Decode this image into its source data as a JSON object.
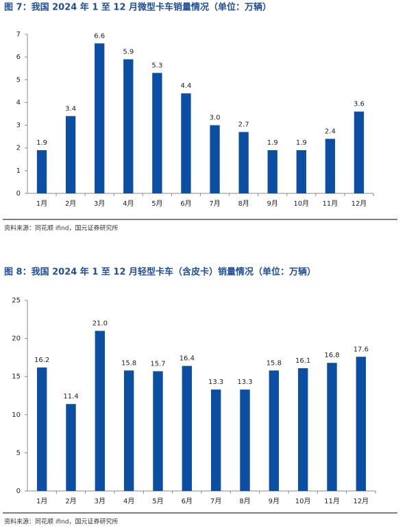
{
  "chart_data": [
    {
      "type": "bar",
      "title": "图 7：我国 2024 年 1 至 12 月微型卡车销量情况（单位：万辆）",
      "categories": [
        "1月",
        "2月",
        "3月",
        "4月",
        "5月",
        "6月",
        "7月",
        "8月",
        "9月",
        "10月",
        "11月",
        "12月"
      ],
      "values": [
        1.9,
        3.4,
        6.6,
        5.9,
        5.3,
        4.4,
        3.0,
        2.7,
        1.9,
        1.9,
        2.4,
        3.6
      ],
      "value_labels": [
        "1.9",
        "3.4",
        "6.6",
        "5.9",
        "5.3",
        "4.4",
        "3.0",
        "2.7",
        "1.9",
        "1.9",
        "2.4",
        "3.6"
      ],
      "color": "#0b4ea2",
      "ylim": [
        0,
        7
      ],
      "yticks": [
        0,
        1,
        2,
        3,
        4,
        5,
        6,
        7
      ],
      "source": "资料来源：同花顺 ifind，国元证券研究所"
    },
    {
      "type": "bar",
      "title": "图 8：我国 2024 年 1 至 12 月轻型卡车（含皮卡）销量情况（单位：万辆）",
      "categories": [
        "1月",
        "2月",
        "3月",
        "4月",
        "5月",
        "6月",
        "7月",
        "8月",
        "9月",
        "10月",
        "11月",
        "12月"
      ],
      "values": [
        16.2,
        11.4,
        21.0,
        15.8,
        15.7,
        16.4,
        13.3,
        13.3,
        15.8,
        16.1,
        16.8,
        17.6
      ],
      "value_labels": [
        "16.2",
        "11.4",
        "21.0",
        "15.8",
        "15.7",
        "16.4",
        "13.3",
        "13.3",
        "15.8",
        "16.1",
        "16.8",
        "17.6"
      ],
      "color": "#0b4ea2",
      "ylim": [
        0,
        25
      ],
      "yticks": [
        0,
        5,
        10,
        15,
        20,
        25
      ],
      "source": "资料来源：同花顺 ifind，国元证券研究所"
    }
  ]
}
